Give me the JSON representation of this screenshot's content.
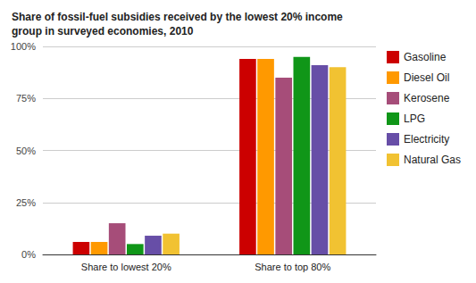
{
  "chart_data": {
    "type": "bar",
    "title": "Share of fossil-fuel subsidies received by the lowest 20% income group in surveyed economies, 2010",
    "categories": [
      "Share to lowest 20%",
      "Share to top 80%"
    ],
    "series": [
      {
        "name": "Gasoline",
        "color": "#cc0000",
        "values": [
          6,
          94
        ]
      },
      {
        "name": "Diesel Oil",
        "color": "#ff9900",
        "values": [
          6,
          94
        ]
      },
      {
        "name": "Kerosene",
        "color": "#a64d79",
        "values": [
          15,
          85
        ]
      },
      {
        "name": "LPG",
        "color": "#109618",
        "values": [
          5,
          95
        ]
      },
      {
        "name": "Electricity",
        "color": "#674ea7",
        "values": [
          9,
          91
        ]
      },
      {
        "name": "Natural Gas",
        "color": "#f1c232",
        "values": [
          10,
          90
        ]
      }
    ],
    "ylim": [
      0,
      100
    ],
    "yticks": [
      {
        "value": 0,
        "label": "0%"
      },
      {
        "value": 25,
        "label": "25%"
      },
      {
        "value": 50,
        "label": "50%"
      },
      {
        "value": 75,
        "label": "75%"
      },
      {
        "value": 100,
        "label": "100%"
      }
    ],
    "grid": true,
    "legend": "right"
  }
}
